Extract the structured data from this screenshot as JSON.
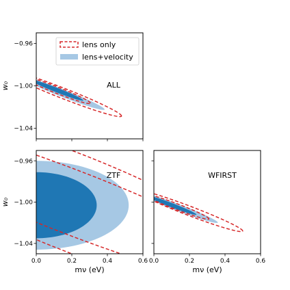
{
  "chart_data": [
    {
      "type": "contour",
      "panel": "ALL",
      "annotation": "ALL",
      "xlim": [
        0.0,
        0.6
      ],
      "ylim": [
        -1.05,
        -0.95
      ],
      "xticks": [],
      "yticks": [
        "−0.96",
        "−1.00",
        "−1.04"
      ],
      "xlabel": "",
      "ylabel": "w₀",
      "legend": {
        "placement": "top-right",
        "entries": [
          {
            "label": "lens only",
            "style": "dashed-outline",
            "color": "#d62728"
          },
          {
            "label": "lens+velocity",
            "style": "filled",
            "color": "#a6c8e4"
          }
        ]
      },
      "series": [
        {
          "name": "lens+velocity",
          "level": "95%",
          "color": "#a6c8e4",
          "ellipse": {
            "center": [
              0.15,
              -1.007
            ],
            "semi_major": 0.235,
            "semi_minor": 0.0038,
            "slope": -0.065
          }
        },
        {
          "name": "lens+velocity",
          "level": "68%",
          "color": "#1f77b4",
          "ellipse": {
            "center": [
              0.115,
              -1.004
            ],
            "semi_major": 0.15,
            "semi_minor": 0.0023,
            "slope": -0.065
          }
        },
        {
          "name": "lens only",
          "level": "95%",
          "color": "#d62728",
          "ellipse": {
            "center": [
              0.15,
              -1.007
            ],
            "semi_major": 0.33,
            "semi_minor": 0.0052,
            "slope": -0.065
          }
        },
        {
          "name": "lens only",
          "level": "68%",
          "color": "#d62728",
          "ellipse": {
            "center": [
              0.115,
              -1.004
            ],
            "semi_major": 0.19,
            "semi_minor": 0.0032,
            "slope": -0.065
          }
        }
      ]
    },
    {
      "type": "contour",
      "panel": "ZTF",
      "annotation": "ZTF",
      "xlim": [
        0.0,
        0.6
      ],
      "ylim": [
        -1.05,
        -0.95
      ],
      "xticks": [
        "0.0",
        "0.2",
        "0.4",
        "0.6"
      ],
      "yticks": [
        "−0.96",
        "−1.00",
        "−1.04"
      ],
      "xlabel": "mν (eV)",
      "ylabel": "w₀",
      "series": [
        {
          "name": "lens+velocity",
          "level": "95%",
          "color": "#a6c8e4",
          "ellipse": {
            "center": [
              0.0,
              -1.003
            ],
            "semi_major": 0.52,
            "semi_minor": 0.043,
            "slope": 0.0
          }
        },
        {
          "name": "lens+velocity",
          "level": "68%",
          "color": "#1f77b4",
          "ellipse": {
            "center": [
              0.0,
              -1.003
            ],
            "semi_major": 0.34,
            "semi_minor": 0.032,
            "slope": 0.0
          }
        },
        {
          "name": "lens only",
          "level": "95%",
          "color": "#d62728",
          "ellipse": {
            "center": [
              0.2,
              -1.0
            ],
            "semi_major": 1.2,
            "semi_minor": 0.05,
            "slope": -0.065
          }
        },
        {
          "name": "lens only",
          "level": "68%",
          "color": "#d62728",
          "ellipse": {
            "center": [
              0.2,
              -1.0
            ],
            "semi_major": 1.2,
            "semi_minor": 0.033,
            "slope": -0.065
          }
        }
      ]
    },
    {
      "type": "contour",
      "panel": "WFIRST",
      "annotation": "WFIRST",
      "xlim": [
        0.0,
        0.6
      ],
      "ylim": [
        -1.05,
        -0.95
      ],
      "xticks": [
        "0.0",
        "0.2",
        "0.4",
        "0.6"
      ],
      "yticks": [],
      "xlabel": "mν (eV)",
      "ylabel": "",
      "series": [
        {
          "name": "lens+velocity",
          "level": "95%",
          "color": "#a6c8e4",
          "ellipse": {
            "center": [
              0.14,
              -1.0055
            ],
            "semi_major": 0.22,
            "semi_minor": 0.0035,
            "slope": -0.065
          }
        },
        {
          "name": "lens+velocity",
          "level": "68%",
          "color": "#1f77b4",
          "ellipse": {
            "center": [
              0.1,
              -1.003
            ],
            "semi_major": 0.14,
            "semi_minor": 0.0022,
            "slope": -0.065
          }
        },
        {
          "name": "lens only",
          "level": "95%",
          "color": "#d62728",
          "ellipse": {
            "center": [
              0.2,
              -1.0085
            ],
            "semi_major": 0.3,
            "semi_minor": 0.0048,
            "slope": -0.065
          }
        },
        {
          "name": "lens only",
          "level": "68%",
          "color": "#d62728",
          "ellipse": {
            "center": [
              0.13,
              -1.0045
            ],
            "semi_major": 0.18,
            "semi_minor": 0.003,
            "slope": -0.065
          }
        }
      ]
    }
  ]
}
